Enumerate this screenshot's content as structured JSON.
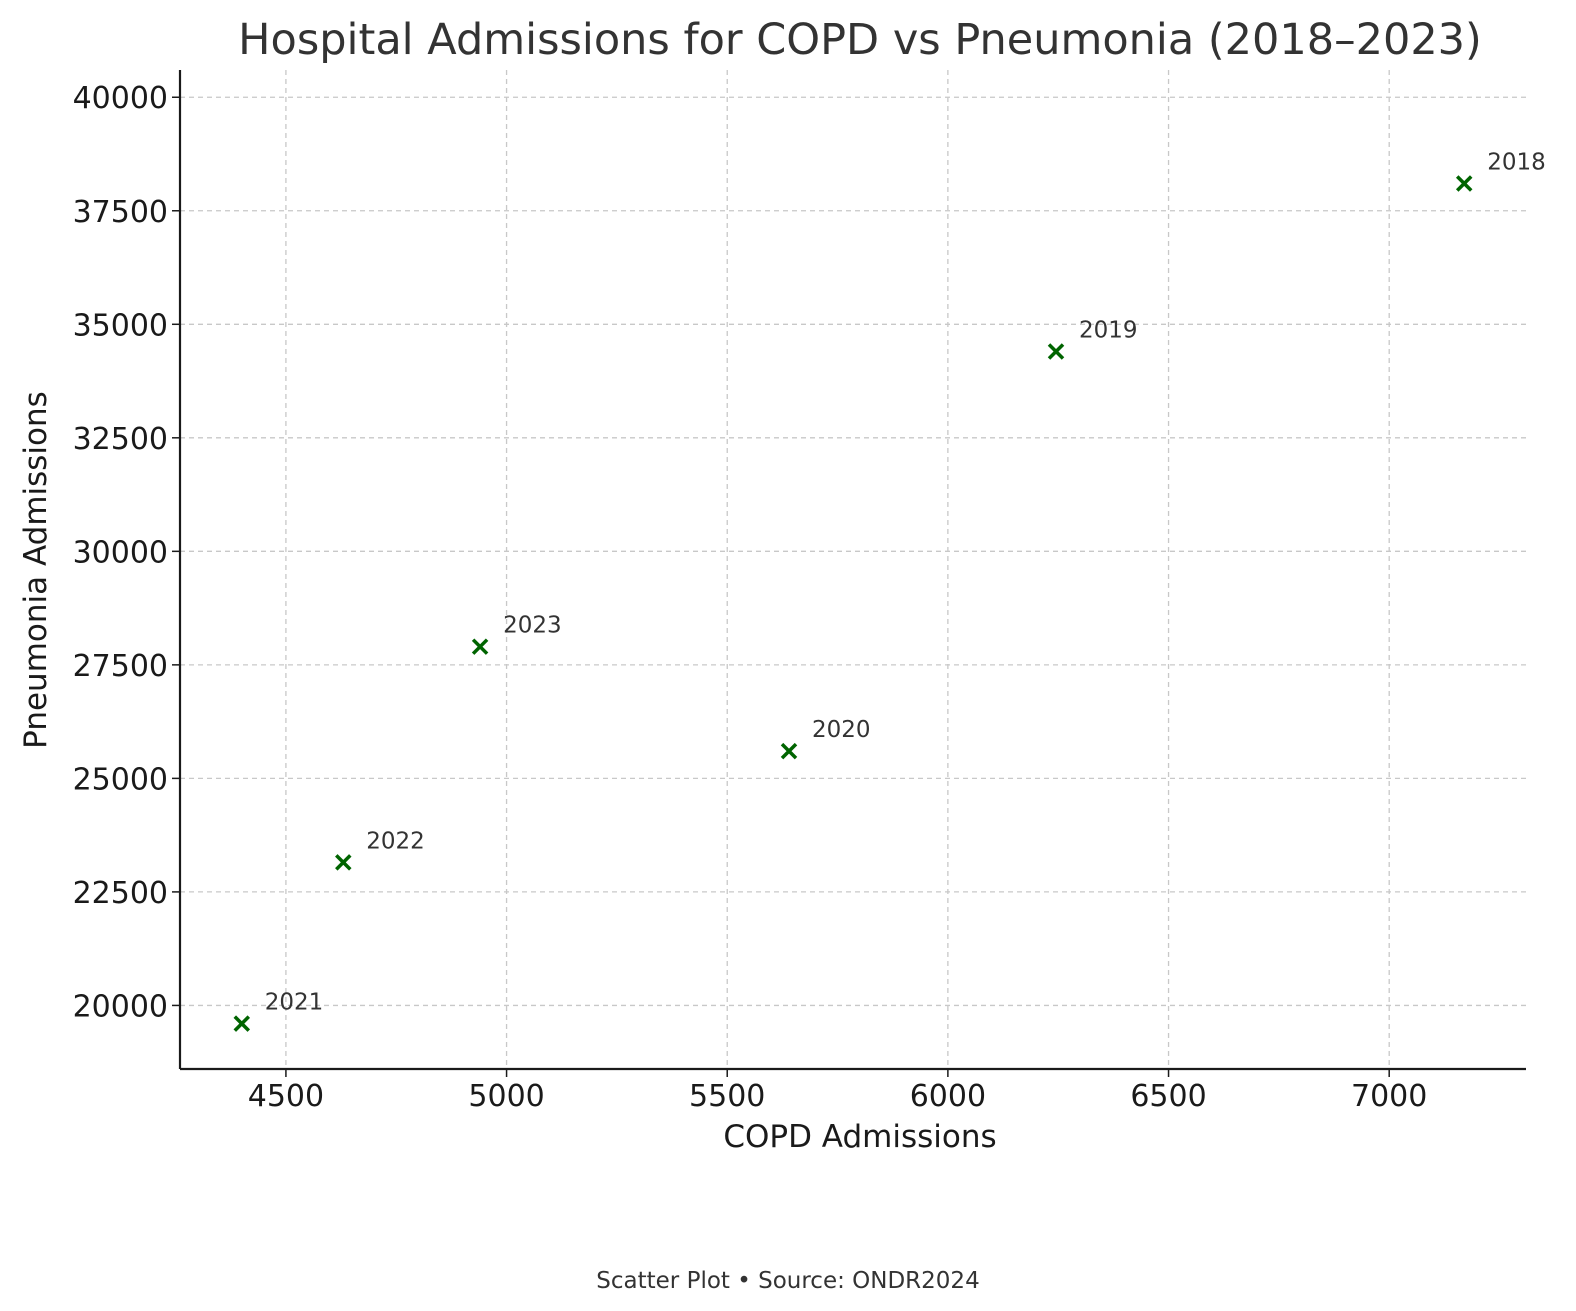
{
  "chart_data": {
    "type": "scatter",
    "title": "Hospital Admissions for COPD vs Pneumonia (2018–2023)",
    "xlabel": "COPD Admissions",
    "ylabel": "Pneumonia Admissions",
    "xlim": [
      4260,
      7310
    ],
    "ylim": [
      18600,
      40600
    ],
    "xticks": [
      4500,
      5000,
      5500,
      6000,
      6500,
      7000
    ],
    "yticks": [
      20000,
      22500,
      25000,
      27500,
      30000,
      32500,
      35000,
      37500,
      40000
    ],
    "grid": true,
    "marker": "x",
    "marker_color": "#006400",
    "points": [
      {
        "label": "2018",
        "x": 7170,
        "y": 38100
      },
      {
        "label": "2019",
        "x": 6245,
        "y": 34400
      },
      {
        "label": "2020",
        "x": 5640,
        "y": 25600
      },
      {
        "label": "2021",
        "x": 4400,
        "y": 19600
      },
      {
        "label": "2022",
        "x": 4630,
        "y": 23150
      },
      {
        "label": "2023",
        "x": 4940,
        "y": 27900
      }
    ]
  },
  "footer": "Scatter Plot • Source: ONDR2024"
}
